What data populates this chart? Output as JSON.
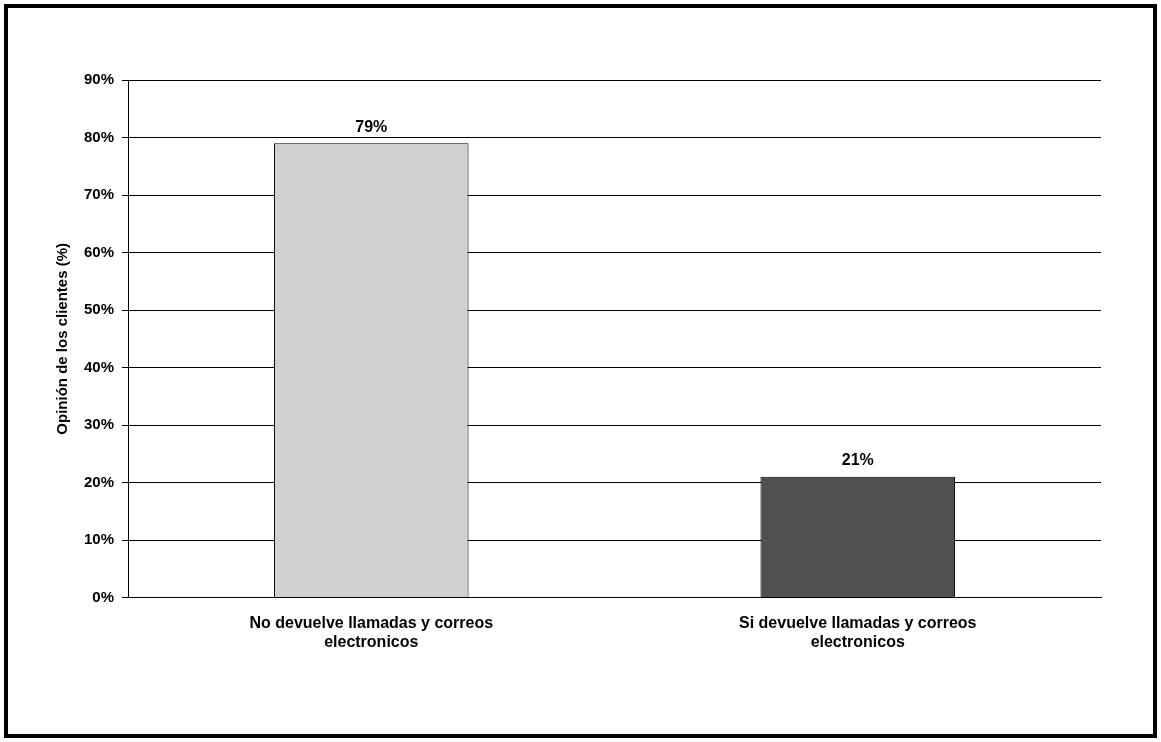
{
  "chart_data": {
    "type": "bar",
    "ylabel": "Opinión de los clientes (%)",
    "categories": [
      "No devuelve llamadas y correos electronicos",
      "Si devuelve llamadas y correos electronicos"
    ],
    "values": [
      79,
      21
    ],
    "colors": [
      "#d0d0d0",
      "#505050"
    ],
    "value_labels": [
      "79%",
      "21%"
    ],
    "ylim": [
      0,
      90
    ],
    "yticks": [
      {
        "value": 0,
        "label": "0%"
      },
      {
        "value": 10,
        "label": "10%"
      },
      {
        "value": 20,
        "label": "20%"
      },
      {
        "value": 30,
        "label": "30%"
      },
      {
        "value": 40,
        "label": "40%"
      },
      {
        "value": 50,
        "label": "50%"
      },
      {
        "value": 60,
        "label": "60%"
      },
      {
        "value": 70,
        "label": "70%"
      },
      {
        "value": 80,
        "label": "80%"
      },
      {
        "value": 90,
        "label": "90%"
      }
    ],
    "grid": "y",
    "legend": false
  }
}
